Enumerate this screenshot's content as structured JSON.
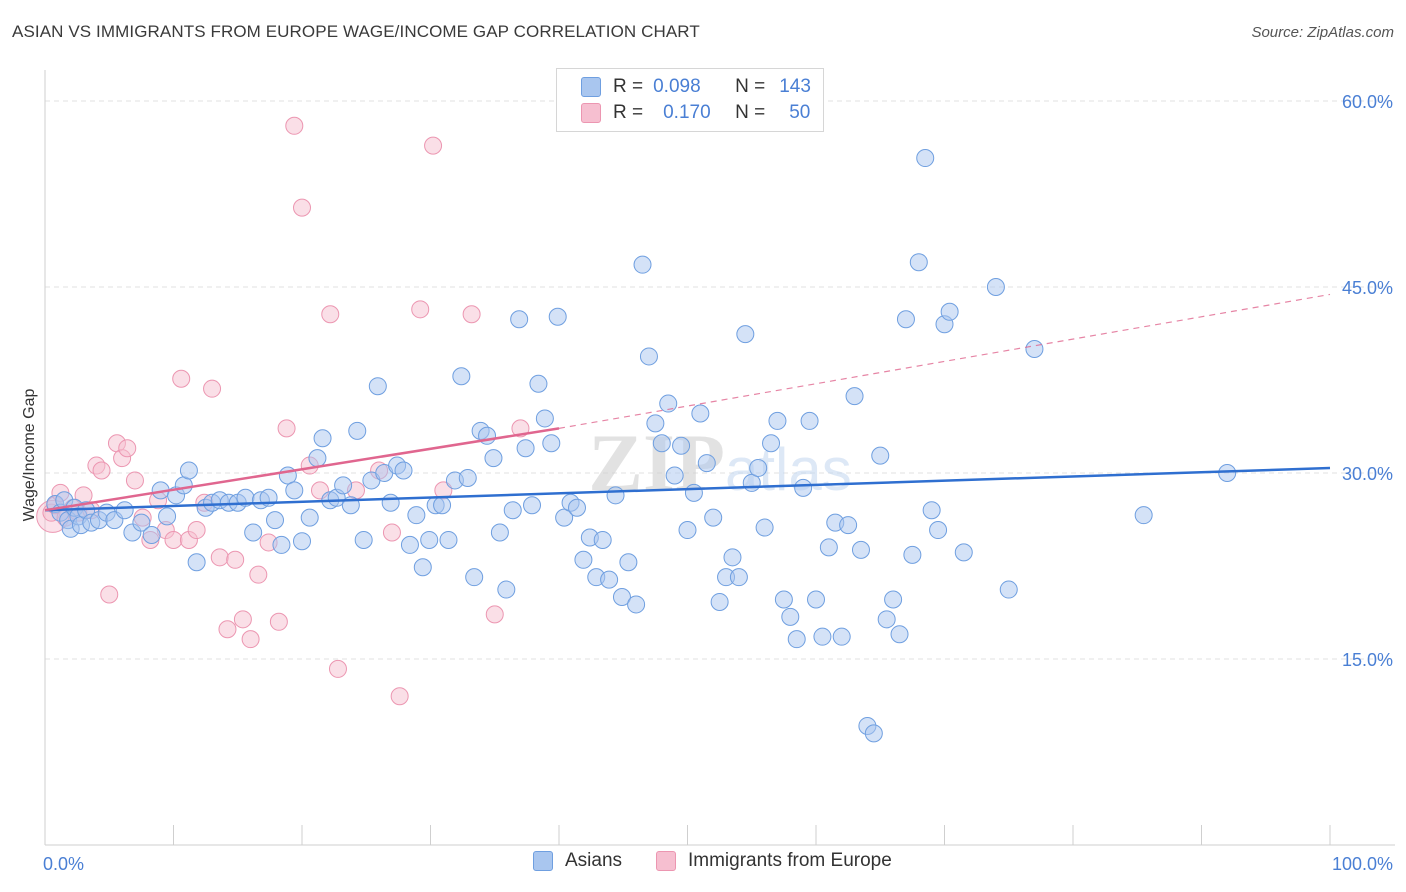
{
  "title": "ASIAN VS IMMIGRANTS FROM EUROPE WAGE/INCOME GAP CORRELATION CHART",
  "source": "Source: ZipAtlas.com",
  "watermark": "ZIPatlas",
  "legend": {
    "rows": [
      {
        "r_label": "R =",
        "r_value": "0.098",
        "n_label": "N =",
        "n_value": "143"
      },
      {
        "r_label": "R =",
        "r_value": "0.170",
        "n_label": "N =",
        "n_value": "50"
      }
    ]
  },
  "colors": {
    "asian_fill": "#a9c6ef",
    "asian_stroke": "#6f9fe0",
    "asian_line": "#2f6fd0",
    "europe_fill": "#f6bfd0",
    "europe_stroke": "#ec96b1",
    "europe_line": "#e0668f",
    "tick_label": "#4a7fd4",
    "grid": "#e2e2e2"
  },
  "chart_data": {
    "type": "scatter",
    "title": "ASIAN VS IMMIGRANTS FROM EUROPE WAGE/INCOME GAP CORRELATION CHART",
    "xlabel": "",
    "ylabel": "Wage/Income Gap",
    "xlim": [
      0,
      100
    ],
    "ylim": [
      0,
      62.5
    ],
    "x_tick_labels": [
      "0.0%",
      "100.0%"
    ],
    "y_ticks": [
      15,
      30,
      45,
      60
    ],
    "y_tick_labels": [
      "15.0%",
      "30.0%",
      "45.0%",
      "60.0%"
    ],
    "grid": true,
    "legend_position": "top-center",
    "series": [
      {
        "name": "Asians",
        "trend": {
          "x": [
            0,
            100
          ],
          "y": [
            27.0,
            30.4
          ],
          "dashed_extension": false
        },
        "points": [
          [
            0.8,
            27.5
          ],
          [
            1.2,
            26.8
          ],
          [
            1.5,
            27.8
          ],
          [
            1.8,
            26.2
          ],
          [
            2.0,
            25.5
          ],
          [
            2.3,
            27.2
          ],
          [
            2.6,
            26.5
          ],
          [
            2.8,
            25.8
          ],
          [
            3.2,
            27.0
          ],
          [
            3.6,
            26.0
          ],
          [
            4.2,
            26.2
          ],
          [
            4.8,
            26.8
          ],
          [
            5.4,
            26.2
          ],
          [
            6.2,
            27.0
          ],
          [
            6.8,
            25.2
          ],
          [
            7.5,
            26.0
          ],
          [
            8.3,
            25.0
          ],
          [
            9.0,
            28.6
          ],
          [
            9.5,
            26.5
          ],
          [
            10.2,
            28.2
          ],
          [
            10.8,
            29.0
          ],
          [
            11.2,
            30.2
          ],
          [
            11.8,
            22.8
          ],
          [
            12.5,
            27.2
          ],
          [
            13.0,
            27.6
          ],
          [
            13.6,
            27.8
          ],
          [
            14.3,
            27.6
          ],
          [
            15.0,
            27.6
          ],
          [
            15.6,
            28.0
          ],
          [
            16.2,
            25.2
          ],
          [
            16.8,
            27.8
          ],
          [
            17.4,
            28.0
          ],
          [
            17.9,
            26.2
          ],
          [
            18.4,
            24.2
          ],
          [
            18.9,
            29.8
          ],
          [
            19.4,
            28.6
          ],
          [
            20.0,
            24.5
          ],
          [
            20.6,
            26.4
          ],
          [
            21.2,
            31.2
          ],
          [
            21.6,
            32.8
          ],
          [
            22.2,
            27.8
          ],
          [
            22.7,
            28.0
          ],
          [
            23.2,
            29.0
          ],
          [
            23.8,
            27.4
          ],
          [
            24.3,
            33.4
          ],
          [
            24.8,
            24.6
          ],
          [
            25.4,
            29.4
          ],
          [
            25.9,
            37.0
          ],
          [
            26.4,
            30.0
          ],
          [
            26.9,
            27.6
          ],
          [
            27.4,
            30.6
          ],
          [
            27.9,
            30.2
          ],
          [
            28.4,
            24.2
          ],
          [
            28.9,
            26.6
          ],
          [
            29.4,
            22.4
          ],
          [
            29.9,
            24.6
          ],
          [
            30.4,
            27.4
          ],
          [
            30.9,
            27.4
          ],
          [
            31.4,
            24.6
          ],
          [
            31.9,
            29.4
          ],
          [
            32.4,
            37.8
          ],
          [
            32.9,
            29.6
          ],
          [
            33.4,
            21.6
          ],
          [
            33.9,
            33.4
          ],
          [
            34.4,
            33.0
          ],
          [
            34.9,
            31.2
          ],
          [
            35.4,
            25.2
          ],
          [
            35.9,
            20.6
          ],
          [
            36.4,
            27.0
          ],
          [
            36.9,
            42.4
          ],
          [
            37.4,
            32.0
          ],
          [
            37.9,
            27.4
          ],
          [
            38.4,
            37.2
          ],
          [
            38.9,
            34.4
          ],
          [
            39.4,
            32.4
          ],
          [
            39.9,
            42.6
          ],
          [
            40.4,
            26.4
          ],
          [
            40.9,
            27.6
          ],
          [
            41.4,
            27.2
          ],
          [
            41.9,
            23.0
          ],
          [
            42.4,
            24.8
          ],
          [
            42.9,
            21.6
          ],
          [
            43.4,
            24.6
          ],
          [
            43.9,
            21.4
          ],
          [
            44.4,
            28.2
          ],
          [
            44.9,
            20.0
          ],
          [
            45.4,
            22.8
          ],
          [
            46.0,
            19.4
          ],
          [
            46.5,
            46.8
          ],
          [
            47.0,
            39.4
          ],
          [
            47.5,
            34.0
          ],
          [
            48.0,
            32.4
          ],
          [
            48.5,
            35.6
          ],
          [
            49.0,
            29.8
          ],
          [
            49.5,
            32.2
          ],
          [
            50.0,
            25.4
          ],
          [
            50.5,
            28.4
          ],
          [
            51.0,
            34.8
          ],
          [
            51.5,
            30.8
          ],
          [
            52.0,
            26.4
          ],
          [
            52.5,
            19.6
          ],
          [
            53.0,
            21.6
          ],
          [
            53.5,
            23.2
          ],
          [
            54.0,
            21.6
          ],
          [
            54.5,
            41.2
          ],
          [
            55.0,
            29.2
          ],
          [
            55.5,
            30.4
          ],
          [
            56.0,
            25.6
          ],
          [
            56.5,
            32.4
          ],
          [
            57.0,
            34.2
          ],
          [
            57.5,
            19.8
          ],
          [
            58.0,
            18.4
          ],
          [
            58.5,
            16.6
          ],
          [
            59.0,
            28.8
          ],
          [
            59.5,
            34.2
          ],
          [
            60.0,
            19.8
          ],
          [
            60.5,
            16.8
          ],
          [
            61.0,
            24.0
          ],
          [
            61.5,
            26.0
          ],
          [
            62.0,
            16.8
          ],
          [
            62.5,
            25.8
          ],
          [
            63.0,
            36.2
          ],
          [
            63.5,
            23.8
          ],
          [
            64.0,
            9.6
          ],
          [
            64.5,
            9.0
          ],
          [
            65.0,
            31.4
          ],
          [
            65.5,
            18.2
          ],
          [
            66.0,
            19.8
          ],
          [
            66.5,
            17.0
          ],
          [
            67.0,
            42.4
          ],
          [
            67.5,
            23.4
          ],
          [
            68.0,
            47.0
          ],
          [
            68.5,
            55.4
          ],
          [
            69.0,
            27.0
          ],
          [
            69.5,
            25.4
          ],
          [
            70.0,
            42.0
          ],
          [
            70.4,
            43.0
          ],
          [
            71.5,
            23.6
          ],
          [
            74.0,
            45.0
          ],
          [
            75.0,
            20.6
          ],
          [
            77.0,
            40.0
          ],
          [
            85.5,
            26.6
          ],
          [
            92.0,
            30.0
          ]
        ]
      },
      {
        "name": "Immigrants from Europe",
        "trend": {
          "x": [
            0,
            40
          ],
          "y": [
            27.0,
            33.6
          ],
          "dashed_extension_to": [
            100,
            44.4
          ]
        },
        "points": [
          [
            0.5,
            26.8
          ],
          [
            0.8,
            27.4
          ],
          [
            1.2,
            28.4
          ],
          [
            1.6,
            26.4
          ],
          [
            2.2,
            27.2
          ],
          [
            2.6,
            26.8
          ],
          [
            3.0,
            28.2
          ],
          [
            3.6,
            27.0
          ],
          [
            4.0,
            30.6
          ],
          [
            4.4,
            30.2
          ],
          [
            5.0,
            20.2
          ],
          [
            5.6,
            32.4
          ],
          [
            6.0,
            31.2
          ],
          [
            6.4,
            32.0
          ],
          [
            7.0,
            29.4
          ],
          [
            7.6,
            26.4
          ],
          [
            8.2,
            24.6
          ],
          [
            8.8,
            27.8
          ],
          [
            9.4,
            25.4
          ],
          [
            10.0,
            24.6
          ],
          [
            10.6,
            37.6
          ],
          [
            11.2,
            24.6
          ],
          [
            11.8,
            25.4
          ],
          [
            12.4,
            27.6
          ],
          [
            13.0,
            36.8
          ],
          [
            13.6,
            23.2
          ],
          [
            14.2,
            17.4
          ],
          [
            14.8,
            23.0
          ],
          [
            15.4,
            18.2
          ],
          [
            16.0,
            16.6
          ],
          [
            16.6,
            21.8
          ],
          [
            17.4,
            24.4
          ],
          [
            18.2,
            18.0
          ],
          [
            18.8,
            33.6
          ],
          [
            19.4,
            58.0
          ],
          [
            20.0,
            51.4
          ],
          [
            20.6,
            30.6
          ],
          [
            21.4,
            28.6
          ],
          [
            22.2,
            42.8
          ],
          [
            22.8,
            14.2
          ],
          [
            24.2,
            28.6
          ],
          [
            26.0,
            30.2
          ],
          [
            27.0,
            25.2
          ],
          [
            27.6,
            12.0
          ],
          [
            29.2,
            43.2
          ],
          [
            30.2,
            56.4
          ],
          [
            31.0,
            28.6
          ],
          [
            33.2,
            42.8
          ],
          [
            35.0,
            18.6
          ],
          [
            37.0,
            33.6
          ]
        ]
      }
    ]
  },
  "bottom_legend": [
    {
      "label": "Asians"
    },
    {
      "label": "Immigrants from Europe"
    }
  ]
}
